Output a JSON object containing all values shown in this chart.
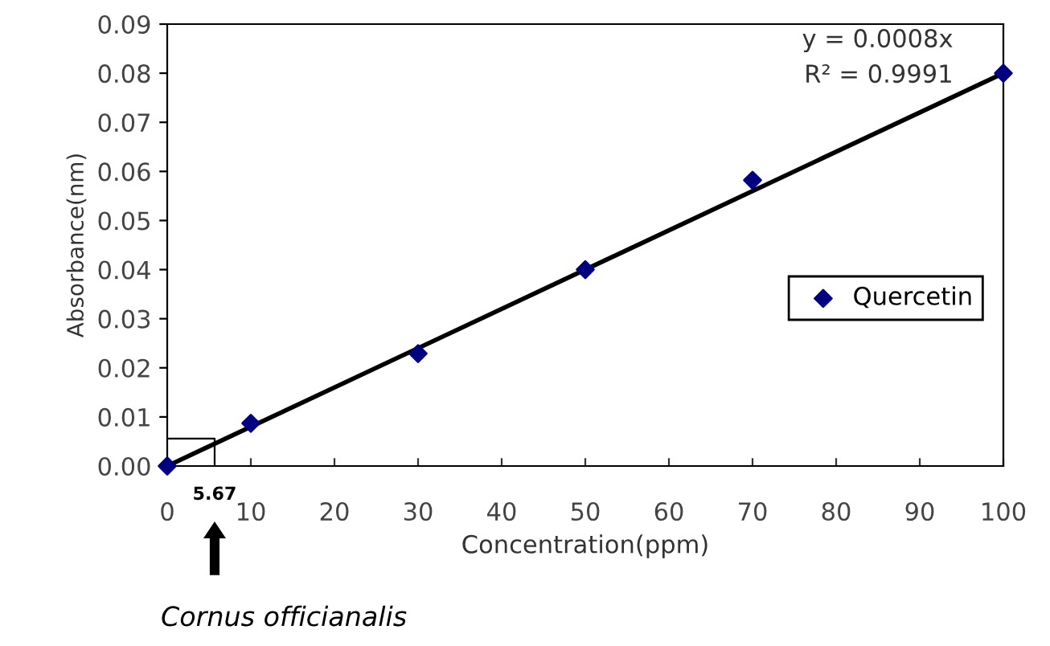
{
  "chart_data": {
    "type": "scatter",
    "xlabel": "Concentration(ppm)",
    "ylabel": "Absorbance(nm)",
    "xlim": [
      0,
      100
    ],
    "xticks": [
      0,
      10,
      20,
      30,
      40,
      50,
      60,
      70,
      80,
      90,
      100
    ],
    "ylim": [
      0,
      0.09
    ],
    "yticks": [
      {
        "value": 0,
        "label": "0.00"
      },
      {
        "value": 0.01,
        "label": "0.01"
      },
      {
        "value": 0.02,
        "label": "0.02"
      },
      {
        "value": 0.03,
        "label": "0.03"
      },
      {
        "value": 0.04,
        "label": "0.04"
      },
      {
        "value": 0.05,
        "label": "0.05"
      },
      {
        "value": 0.06,
        "label": "0.06"
      },
      {
        "value": 0.07,
        "label": "0.07"
      },
      {
        "value": 0.08,
        "label": "0.08"
      },
      {
        "value": 0.09,
        "label": "0.09"
      }
    ],
    "series": [
      {
        "name": "Quercetin",
        "color": "#000080",
        "marker": "diamond",
        "x": [
          0,
          10,
          30,
          50,
          70,
          100
        ],
        "values": [
          0,
          0.0087,
          0.0229,
          0.04,
          0.0582,
          0.08
        ]
      },
      {
        "type": "line",
        "color": "#000000",
        "x": [
          0,
          100
        ],
        "values": [
          0,
          0.08
        ]
      },
      {
        "type": "line",
        "color": "#000000",
        "x": [
          0,
          5.67,
          5.67
        ],
        "values": [
          0.0056,
          0.0056,
          0
        ]
      }
    ],
    "annotations": [
      "y = 0.0008x",
      "R² = 0.9991",
      {
        "text": "5.67",
        "x": 5.67,
        "y": 0
      },
      "Cornus officianalis"
    ],
    "legend": "right",
    "grid": false
  }
}
